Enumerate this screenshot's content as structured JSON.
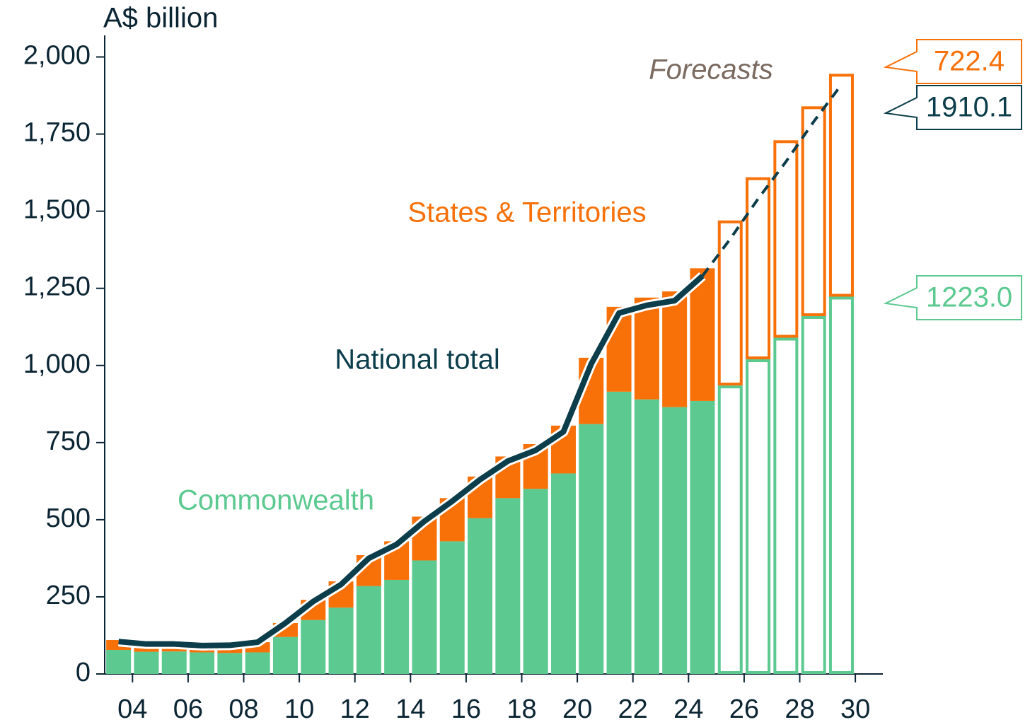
{
  "chart_data": {
    "type": "stacked_bar_line",
    "y_label": "A$ billion",
    "annotation": "Forecasts",
    "categories": [
      "04",
      null,
      "06",
      null,
      "08",
      null,
      "10",
      null,
      "12",
      null,
      "14",
      null,
      "16",
      null,
      "18",
      null,
      "20",
      null,
      "22",
      null,
      "24",
      null,
      "26",
      null,
      "28",
      null,
      "30"
    ],
    "forecast_from_index": 22,
    "series": [
      {
        "name": "Commonwealth",
        "color": "#5cc990",
        "kind": "bar",
        "values": [
          78,
          72,
          73,
          70,
          68,
          70,
          120,
          175,
          215,
          285,
          305,
          368,
          430,
          505,
          570,
          600,
          650,
          810,
          915,
          890,
          865,
          885,
          935,
          1020,
          1090,
          1160,
          1223.0
        ],
        "value_labels": [
          null,
          null,
          null,
          null,
          null,
          null,
          null,
          null,
          null,
          null,
          null,
          null,
          null,
          null,
          null,
          null,
          null,
          null,
          null,
          null,
          null,
          null,
          null,
          null,
          null,
          null,
          "1223.0"
        ]
      },
      {
        "name": "States & Territories",
        "color": "#f77008",
        "kind": "bar",
        "values": [
          32,
          25,
          24,
          22,
          25,
          33,
          45,
          65,
          85,
          100,
          125,
          142,
          140,
          135,
          135,
          145,
          155,
          215,
          275,
          330,
          375,
          430,
          535,
          590,
          640,
          680,
          722.4
        ],
        "value_labels": [
          null,
          null,
          null,
          null,
          null,
          null,
          null,
          null,
          null,
          null,
          null,
          null,
          null,
          null,
          null,
          null,
          null,
          null,
          null,
          null,
          null,
          null,
          null,
          null,
          null,
          null,
          "722.4"
        ]
      },
      {
        "name": "National total",
        "color": "#0b3d4a",
        "kind": "line",
        "values": [
          105,
          97,
          97,
          92,
          93,
          103,
          165,
          235,
          290,
          375,
          420,
          495,
          560,
          630,
          690,
          725,
          785,
          1005,
          1170,
          1195,
          1210,
          1290,
          1410,
          1540,
          1660,
          1790,
          1910.1
        ],
        "value_labels": [
          null,
          null,
          null,
          null,
          null,
          null,
          null,
          null,
          null,
          null,
          null,
          null,
          null,
          null,
          null,
          null,
          null,
          null,
          null,
          null,
          null,
          null,
          null,
          null,
          null,
          null,
          "1910.1"
        ]
      }
    ],
    "ylim": [
      0,
      2070
    ],
    "yticks": [
      0,
      250,
      500,
      750,
      {
        "value": 1000,
        "label": "1,000"
      },
      {
        "value": 1250,
        "label": "1,250"
      },
      {
        "value": 1500,
        "label": "1,500"
      },
      {
        "value": 1750,
        "label": "1,750"
      },
      {
        "value": 2000,
        "label": "2,000"
      }
    ]
  }
}
